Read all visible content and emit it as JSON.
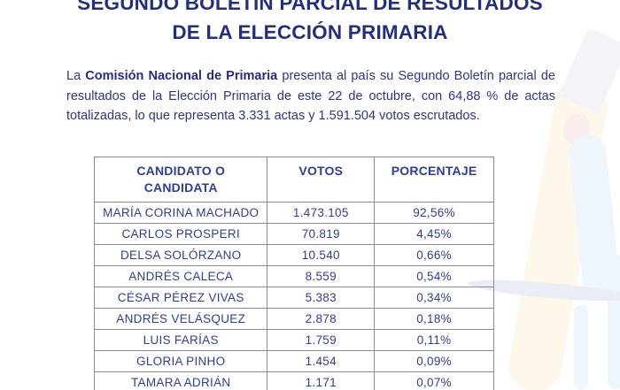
{
  "title": {
    "line1": "SEGUNDO BOLETÍN PARCIAL DE RESULTADOS",
    "line2": "DE LA ELECCIÓN PRIMARIA"
  },
  "intro": {
    "prefix": "La ",
    "org_bold": "Comisión Nacional de Primaria",
    "rest": " presenta al país su Segundo Boletín parcial de resultados de la Elección Primaria de este 22 de octubre, con 64,88 % de actas totalizadas, lo que representa 3.331 actas y 1.591.504 votos escrutados."
  },
  "table": {
    "headers": [
      "CANDIDATO O CANDIDATA",
      "VOTOS",
      "PORCENTAJE"
    ],
    "rows": [
      [
        "MARÍA CORINA MACHADO",
        "1.473.105",
        "92,56%"
      ],
      [
        "CARLOS PROSPERI",
        "70.819",
        "4,45%"
      ],
      [
        "DELSA SOLÓRZANO",
        "10.540",
        "0,66%"
      ],
      [
        "ANDRÉS CALECA",
        "8.559",
        "0,54%"
      ],
      [
        "CÉSAR PÉREZ VIVAS",
        "5.383",
        "0,34%"
      ],
      [
        "ANDRÉS VELÁSQUEZ",
        "2.878",
        "0,18%"
      ],
      [
        "LUIS FARÍAS",
        "1.759",
        "0,11%"
      ],
      [
        "GLORIA PINHO",
        "1.454",
        "0,09%"
      ],
      [
        "TAMARA ADRIÁN",
        "1.171",
        "0,07%"
      ]
    ]
  },
  "colors": {
    "title_text": "#232e83",
    "body_text": "#2b3689",
    "table_text": "#2e3d96",
    "table_border": "#8c8c8c",
    "watermark_cream": "#fdf8ea",
    "watermark_blue": "#eff6fb",
    "watermark_swoosh": "#eaecf6"
  }
}
